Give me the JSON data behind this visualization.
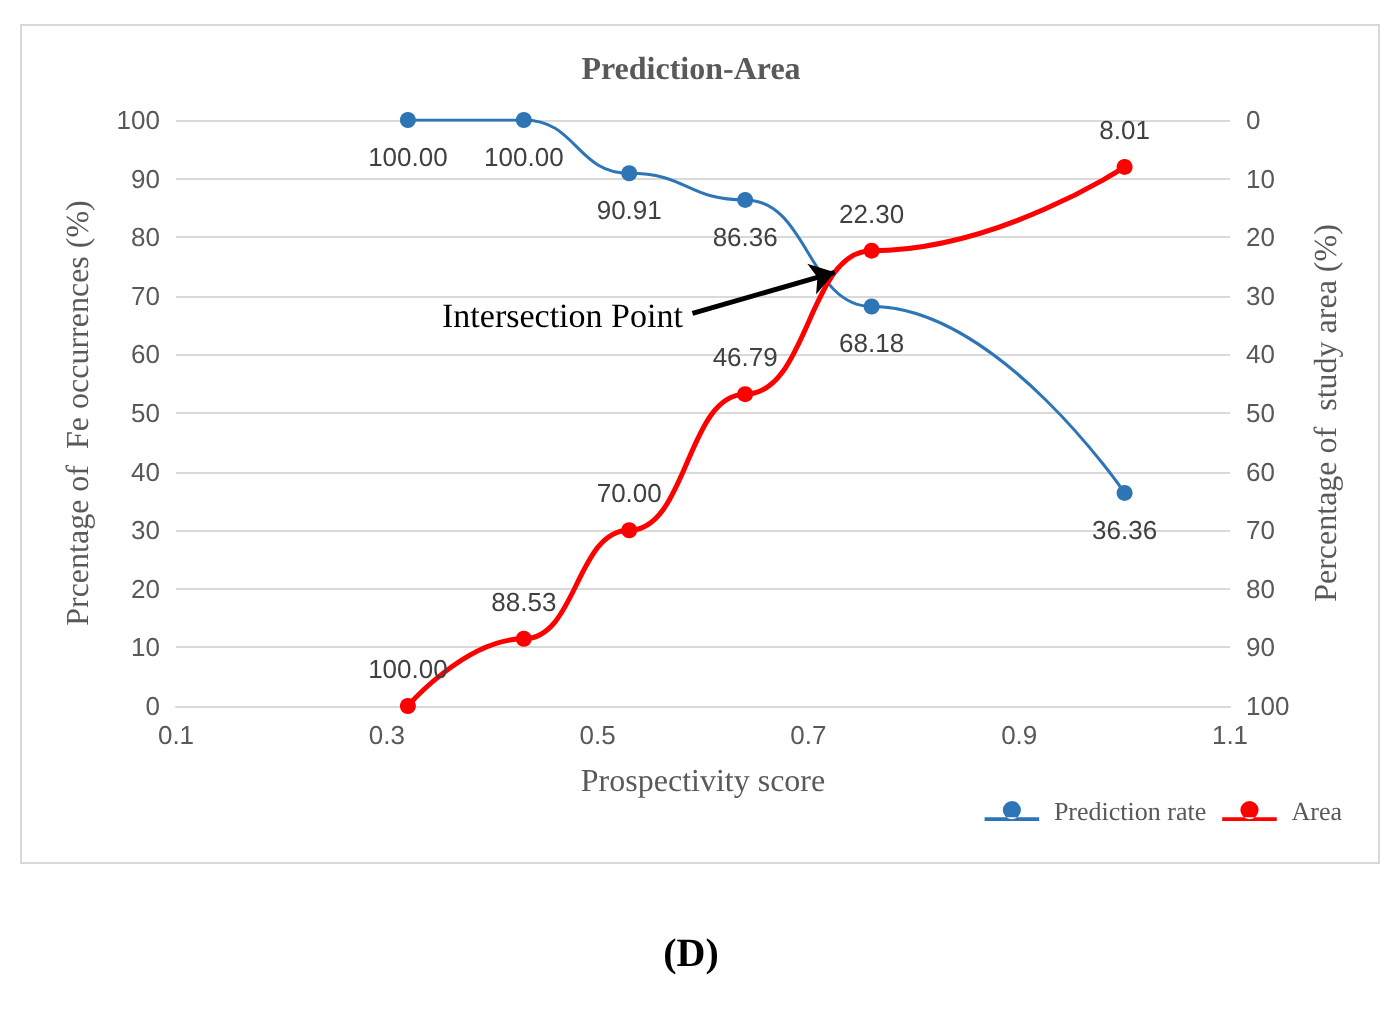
{
  "chart_data": {
    "type": "line",
    "title": "Prediction-Area",
    "xlabel": "Prospectivity score",
    "ylabel": "Prcentage of  Fe occurrences (%)",
    "y2label": "Percentage of  study area (%)",
    "x": [
      0.32,
      0.43,
      0.53,
      0.64,
      0.76,
      1.0
    ],
    "series": [
      {
        "name": "Prediction rate",
        "color": "#2e75b6",
        "values": [
          100,
          100,
          90.91,
          86.36,
          68.18,
          36.36
        ],
        "value_labels": [
          "100.00",
          "100.00",
          "90.91",
          "86.36",
          "68.18",
          "36.36"
        ]
      },
      {
        "name": "Area",
        "color": "#ff0000",
        "axis": "y2",
        "values": [
          100,
          88.53,
          70,
          46.79,
          22.3,
          8.01
        ],
        "value_labels": [
          "100.00",
          "88.53",
          "70.00",
          "46.79",
          "22.30",
          "8.01"
        ]
      }
    ],
    "xlim": [
      0.1,
      1.1
    ],
    "xticks": [
      0.1,
      0.3,
      0.5,
      0.7,
      0.9,
      1.1
    ],
    "ylim": [
      0,
      100
    ],
    "yticks": [
      0,
      10,
      20,
      30,
      40,
      50,
      60,
      70,
      80,
      90,
      100
    ],
    "y2lim": [
      100,
      0
    ],
    "y2ticks": [
      0,
      10,
      20,
      30,
      40,
      50,
      60,
      70,
      80,
      90,
      100
    ],
    "annotations": [
      {
        "text": "Intersection Point",
        "x": 0.725,
        "y": 74
      },
      "(D)"
    ],
    "grid": "y",
    "legend": "bottom right",
    "marker": "circle",
    "line_style": "solid"
  }
}
